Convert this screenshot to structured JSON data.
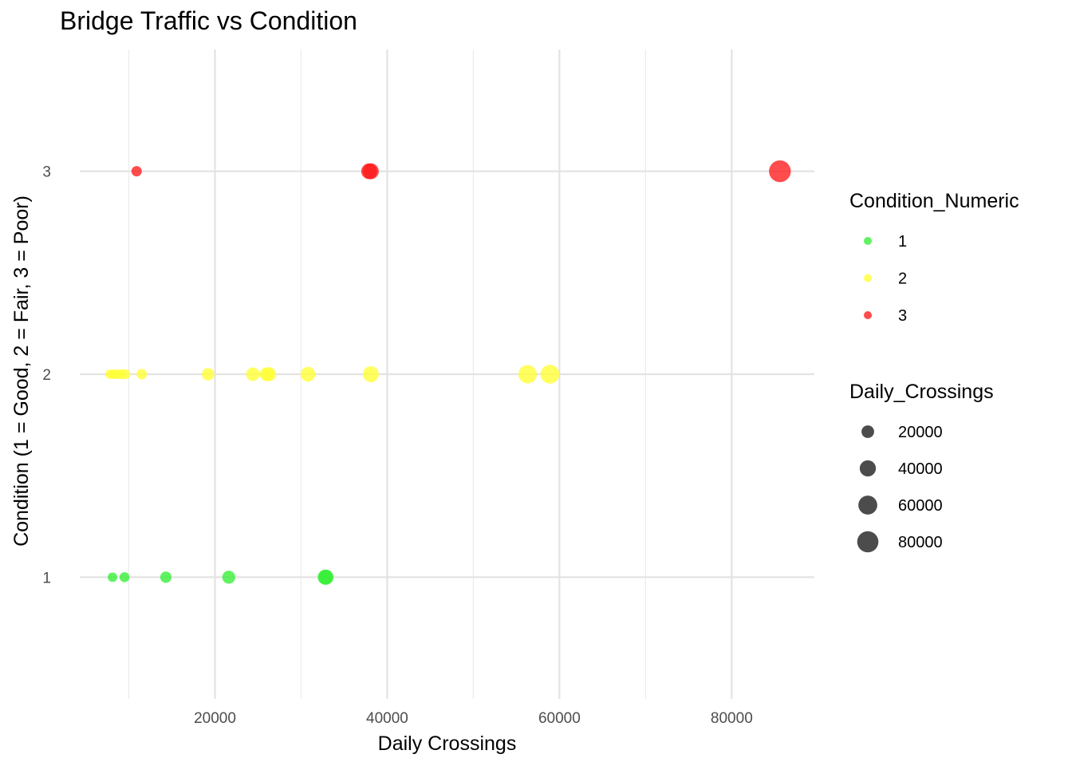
{
  "chart_data": {
    "type": "scatter",
    "title": "Bridge Traffic vs Condition",
    "xlabel": "Daily Crossings",
    "ylabel": "Condition (1 = Good, 2 = Fair, 3 = Poor)",
    "xlim": [
      4300,
      89600
    ],
    "ylim": [
      0.4,
      3.6
    ],
    "x_ticks": [
      20000,
      40000,
      60000,
      80000
    ],
    "x_tick_labels": [
      "20000",
      "40000",
      "60000",
      "80000"
    ],
    "x_minor_ticks": [
      10000,
      30000,
      50000,
      70000
    ],
    "y_ticks": [
      1,
      2,
      3
    ],
    "y_tick_labels": [
      "1",
      "2",
      "3"
    ],
    "grid": true,
    "legend_position": "right",
    "colors": {
      "1": "#33ee33",
      "2": "#ffff33",
      "3": "#ff1a1a"
    },
    "series": [
      {
        "name": "1",
        "color": "#33ee33",
        "points": [
          {
            "x": 8100,
            "y": 1
          },
          {
            "x": 9500,
            "y": 1
          },
          {
            "x": 14300,
            "y": 1
          },
          {
            "x": 21600,
            "y": 1
          },
          {
            "x": 32800,
            "y": 1
          },
          {
            "x": 32900,
            "y": 1
          }
        ]
      },
      {
        "name": "2",
        "color": "#ffff33",
        "points": [
          {
            "x": 7800,
            "y": 2
          },
          {
            "x": 8200,
            "y": 2
          },
          {
            "x": 8600,
            "y": 2
          },
          {
            "x": 9100,
            "y": 2
          },
          {
            "x": 9600,
            "y": 2
          },
          {
            "x": 11500,
            "y": 2
          },
          {
            "x": 19200,
            "y": 2
          },
          {
            "x": 24400,
            "y": 2
          },
          {
            "x": 26000,
            "y": 2
          },
          {
            "x": 26300,
            "y": 2
          },
          {
            "x": 30800,
            "y": 2
          },
          {
            "x": 38100,
            "y": 2
          },
          {
            "x": 56300,
            "y": 2
          },
          {
            "x": 58900,
            "y": 2
          }
        ]
      },
      {
        "name": "3",
        "color": "#ff1a1a",
        "points": [
          {
            "x": 10900,
            "y": 3
          },
          {
            "x": 37900,
            "y": 3
          },
          {
            "x": 38100,
            "y": 3
          },
          {
            "x": 85600,
            "y": 3
          }
        ]
      }
    ],
    "legend": {
      "color_title": "Condition_Numeric",
      "color_entries": [
        {
          "label": "1",
          "color": "#33ee33"
        },
        {
          "label": "2",
          "color": "#ffff33"
        },
        {
          "label": "3",
          "color": "#ff1a1a"
        }
      ],
      "size_title": "Daily_Crossings",
      "size_entries": [
        {
          "label": "20000",
          "value": 20000
        },
        {
          "label": "40000",
          "value": 40000
        },
        {
          "label": "60000",
          "value": 60000
        },
        {
          "label": "80000",
          "value": 80000
        }
      ]
    }
  }
}
